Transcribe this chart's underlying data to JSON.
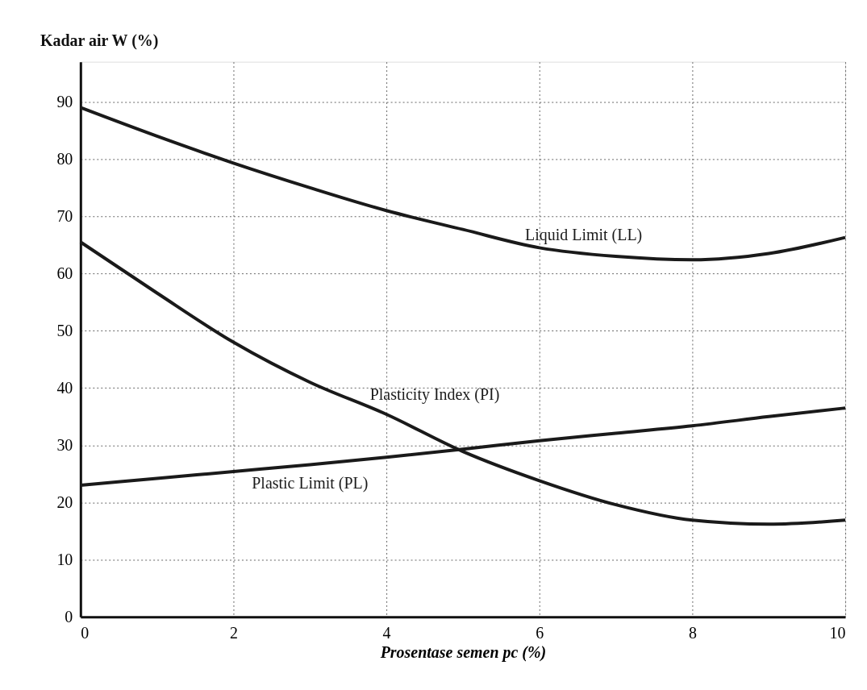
{
  "chart_data": {
    "type": "line",
    "ylabel": "Kadar air W (%)",
    "xlabel": "Prosentase semen pc  (%)",
    "x": [
      0,
      1,
      2,
      3,
      4,
      5,
      6,
      7,
      8,
      9,
      10
    ],
    "series": [
      {
        "name": "Liquid Limit (LL)",
        "color": "#1a1a1a",
        "values": [
          89,
          84,
          79.3,
          75,
          71,
          67.7,
          64.5,
          63,
          62.4,
          63.5,
          66.3
        ]
      },
      {
        "name": "Plasticity Index (PI)",
        "color": "#1a1a1a",
        "values": [
          65.5,
          56.6,
          48,
          41,
          35.4,
          28.9,
          23.8,
          19.6,
          16.9,
          16.2,
          16.9
        ]
      },
      {
        "name": "Plastic Limit (PL)",
        "color": "#1a1a1a",
        "values": [
          23,
          24.2,
          25.4,
          26.6,
          27.9,
          29.3,
          30.8,
          32.1,
          33.4,
          35,
          36.5
        ]
      }
    ],
    "xlim": [
      0,
      10
    ],
    "xticks": [
      0,
      2,
      4,
      6,
      8,
      10
    ],
    "ylim": [
      0,
      97
    ],
    "yticks": [
      0,
      10,
      20,
      30,
      40,
      50,
      60,
      70,
      80,
      90
    ],
    "grid": true,
    "line_style": "solid",
    "marker": "none"
  }
}
